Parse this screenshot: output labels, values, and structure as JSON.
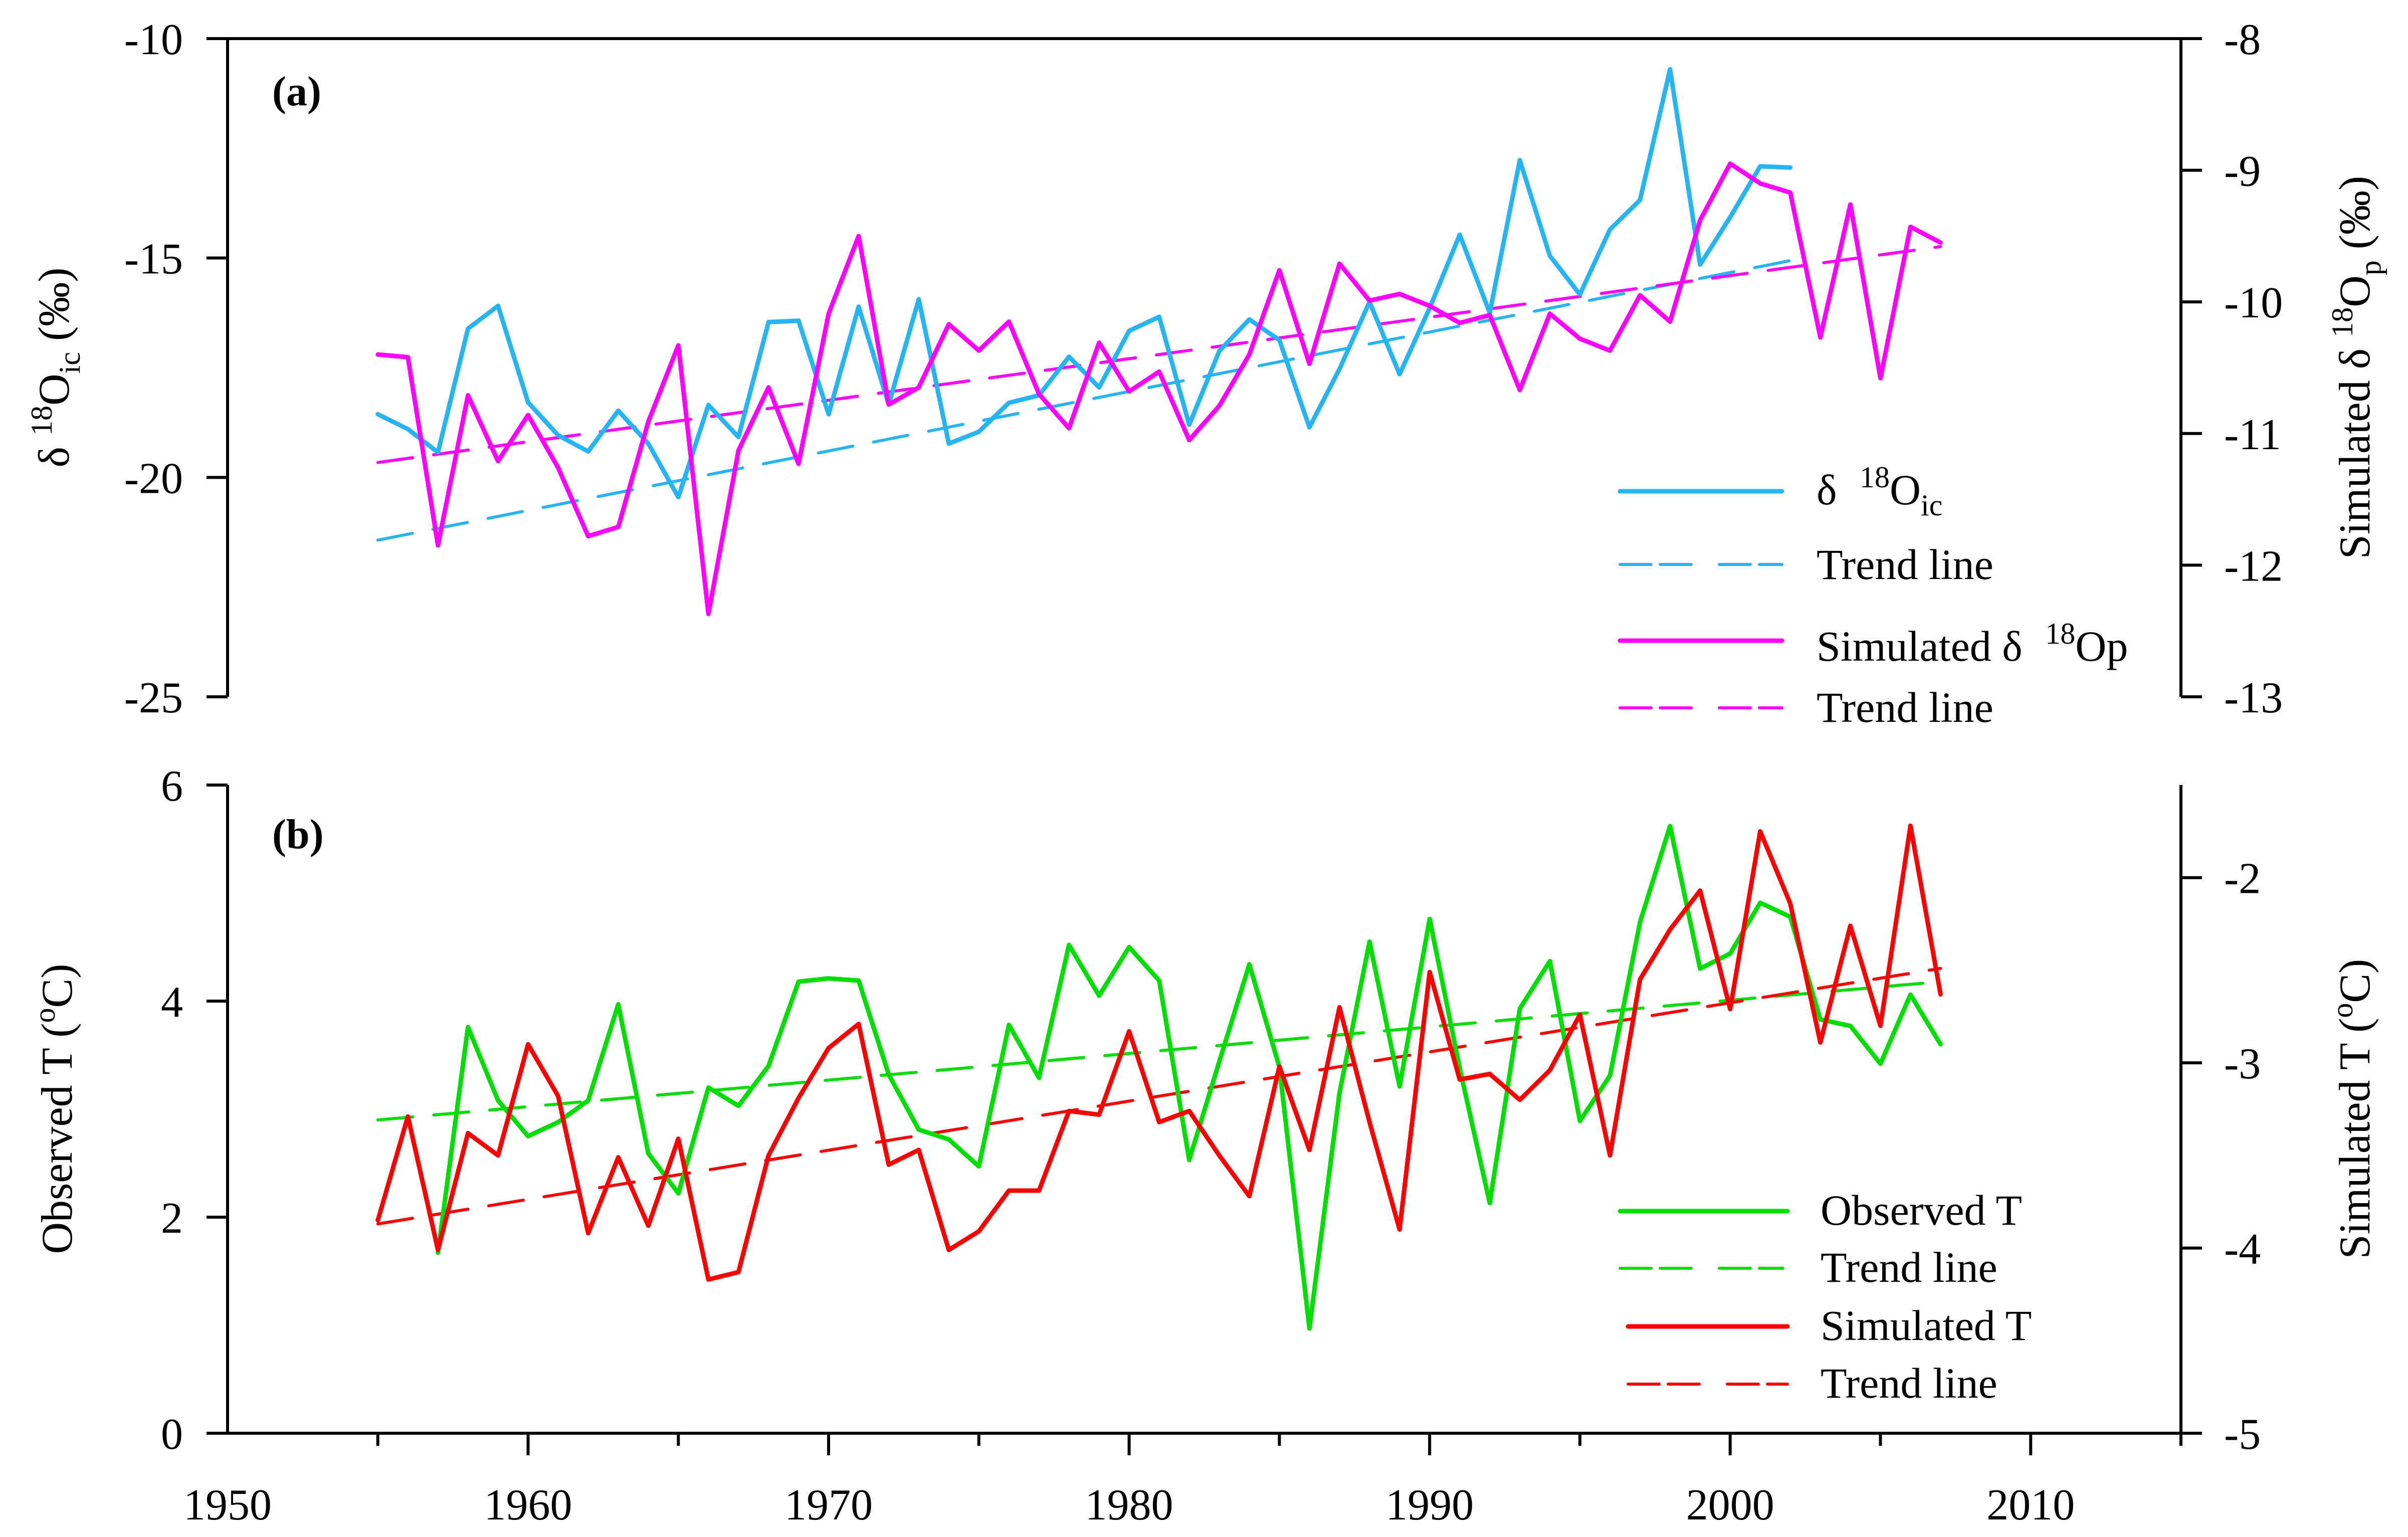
{
  "colors": {
    "delta18O_ic": "#26B4F5",
    "simulated_delta18O_p": "#FF00FF",
    "observed_T": "#00DD00",
    "simulated_T": "#FF0000",
    "axes": "#000000"
  },
  "x_axis": {
    "range": [
      1950,
      2015
    ],
    "ticks": [
      1950,
      1960,
      1970,
      1980,
      1990,
      2000,
      2010
    ],
    "tick_labels": [
      "1950",
      "1960",
      "1970",
      "1980",
      "1990",
      "2000",
      "2010"
    ],
    "minor_step": 5
  },
  "chart_data": [
    {
      "panel": "a",
      "type": "line",
      "label": "(a)",
      "y_left": {
        "title": {
          "prefix": "δ ",
          "sup": "18",
          "main": "O",
          "sub": "ic",
          "suffix": " (‰)"
        },
        "range": [
          -25,
          -10
        ],
        "ticks": [
          -10,
          -15,
          -20,
          -25
        ],
        "tick_labels": [
          "-10",
          "-15",
          "-20",
          "-25"
        ]
      },
      "y_right": {
        "title": {
          "prefix": "Simulated δ ",
          "sup": "18",
          "main": "O",
          "sub": "p",
          "suffix": " (‰)"
        },
        "range": [
          -13,
          -8
        ],
        "ticks": [
          -8,
          -9,
          -10,
          -11,
          -12,
          -13
        ],
        "tick_labels": [
          "-8",
          "-9",
          "-10",
          "-11",
          "-12",
          "-13"
        ]
      },
      "legend": [
        {
          "prefix": "δ ",
          "sup": "18",
          "main": "O",
          "sub": "ic"
        },
        {
          "text": "Trend line"
        },
        {
          "prefix": "Simulated δ ",
          "sup": "18",
          "main": "Op"
        },
        {
          "text": "Trend line"
        }
      ],
      "series": [
        {
          "id": "delta18o-ic-trend",
          "name": "Trend line",
          "axis": "left",
          "style": "dashed",
          "color": "#26B4F5",
          "x": [
            1955,
            2002
          ],
          "values": [
            -21.43,
            -15.06
          ]
        },
        {
          "id": "simulated-delta18o-p-trend",
          "name": "Trend line",
          "axis": "right",
          "style": "dashed",
          "color": "#FF00FF",
          "x": [
            1955,
            2007
          ],
          "values": [
            -11.22,
            -9.58
          ]
        },
        {
          "id": "delta18o-ic",
          "name": "δ18Oic",
          "axis": "left",
          "style": "solid",
          "color": "#26B4F5",
          "x": [
            1955,
            1956,
            1957,
            1958,
            1959,
            1960,
            1961,
            1962,
            1963,
            1964,
            1965,
            1966,
            1967,
            1968,
            1969,
            1970,
            1971,
            1972,
            1973,
            1974,
            1975,
            1976,
            1977,
            1978,
            1979,
            1980,
            1981,
            1982,
            1983,
            1984,
            1985,
            1986,
            1987,
            1988,
            1989,
            1990,
            1991,
            1992,
            1993,
            1994,
            1995,
            1996,
            1997,
            1998,
            1999,
            2000,
            2001,
            2002
          ],
          "values": [
            -18.56,
            -18.9,
            -19.43,
            -16.61,
            -16.09,
            -18.29,
            -19.04,
            -19.41,
            -18.48,
            -19.23,
            -20.45,
            -18.35,
            -19.08,
            -16.46,
            -16.43,
            -18.56,
            -16.11,
            -18.34,
            -15.94,
            -19.23,
            -18.96,
            -18.3,
            -18.13,
            -17.25,
            -17.95,
            -16.66,
            -16.34,
            -18.8,
            -17.12,
            -16.4,
            -16.87,
            -18.86,
            -17.53,
            -16.0,
            -17.65,
            -16.14,
            -14.47,
            -16.25,
            -12.77,
            -14.95,
            -15.83,
            -14.35,
            -13.68,
            -10.7,
            -15.15,
            -14.07,
            -12.91,
            -12.94
          ]
        },
        {
          "id": "simulated-delta18o-p",
          "name": "Simulated δ18Op",
          "axis": "right",
          "style": "solid",
          "color": "#FF00FF",
          "x": [
            1955,
            1956,
            1957,
            1958,
            1959,
            1960,
            1961,
            1962,
            1963,
            1964,
            1965,
            1966,
            1967,
            1968,
            1969,
            1970,
            1971,
            1972,
            1973,
            1974,
            1975,
            1976,
            1977,
            1978,
            1979,
            1980,
            1981,
            1982,
            1983,
            1984,
            1985,
            1986,
            1987,
            1988,
            1989,
            1990,
            1991,
            1992,
            1993,
            1994,
            1995,
            1996,
            1997,
            1998,
            1999,
            2000,
            2001,
            2002,
            2003,
            2004,
            2005,
            2006,
            2007
          ],
          "values": [
            -10.4,
            -10.42,
            -11.85,
            -10.71,
            -11.21,
            -10.86,
            -11.26,
            -11.78,
            -11.71,
            -10.91,
            -10.33,
            -12.37,
            -11.13,
            -10.65,
            -11.23,
            -10.09,
            -9.5,
            -10.78,
            -10.65,
            -10.17,
            -10.37,
            -10.15,
            -10.7,
            -10.96,
            -10.31,
            -10.68,
            -10.53,
            -11.05,
            -10.79,
            -10.4,
            -9.76,
            -10.47,
            -9.71,
            -9.99,
            -9.94,
            -10.03,
            -10.16,
            -10.1,
            -10.67,
            -10.09,
            -10.28,
            -10.37,
            -9.95,
            -10.15,
            -9.38,
            -8.95,
            -9.1,
            -9.17,
            -10.27,
            -9.26,
            -10.58,
            -9.43,
            -9.55
          ]
        }
      ],
      "legend_position": "bottom-right"
    },
    {
      "panel": "b",
      "type": "line",
      "label": "(b)",
      "y_left": {
        "title": {
          "prefix": "Observed T (",
          "sup": "o",
          "main": "C)"
        },
        "range": [
          0,
          6
        ],
        "ticks": [
          0,
          2,
          4,
          6
        ],
        "tick_labels": [
          "0",
          "2",
          "4",
          "6"
        ]
      },
      "y_right": {
        "title": {
          "prefix": "Simulated T (",
          "sup": "o",
          "main": "C)"
        },
        "range": [
          -5,
          -1.5
        ],
        "ticks": [
          -2,
          -3,
          -4,
          -5
        ],
        "tick_labels": [
          "-2",
          "-3",
          "-4",
          "-5"
        ]
      },
      "legend": [
        {
          "text": "Observed T"
        },
        {
          "text": "Trend line"
        },
        {
          "text": "Simulated T"
        },
        {
          "text": "Trend line"
        }
      ],
      "series": [
        {
          "id": "observed-t-trend",
          "name": "Trend line",
          "axis": "left",
          "style": "dashed",
          "color": "#00DD00",
          "x": [
            1955,
            2007
          ],
          "values": [
            2.9,
            4.18
          ]
        },
        {
          "id": "simulated-t-trend",
          "name": "Trend line",
          "axis": "right",
          "style": "dashed",
          "color": "#FF0000",
          "x": [
            1955,
            2007
          ],
          "values": [
            -3.87,
            -2.49
          ]
        },
        {
          "id": "observed-t",
          "name": "Observed T",
          "axis": "left",
          "style": "solid",
          "color": "#00DD00",
          "x": [
            1957,
            1958,
            1959,
            1960,
            1961,
            1962,
            1963,
            1964,
            1965,
            1966,
            1967,
            1968,
            1969,
            1970,
            1971,
            1972,
            1973,
            1974,
            1975,
            1976,
            1977,
            1978,
            1979,
            1980,
            1981,
            1982,
            1983,
            1984,
            1985,
            1986,
            1987,
            1988,
            1989,
            1990,
            1991,
            1992,
            1993,
            1994,
            1995,
            1996,
            1997,
            1998,
            1999,
            2000,
            2001,
            2002,
            2003,
            2004,
            2005,
            2006,
            2007
          ],
          "values": [
            1.67,
            3.76,
            3.08,
            2.75,
            2.88,
            3.08,
            3.97,
            2.59,
            2.22,
            3.2,
            3.03,
            3.4,
            4.18,
            4.21,
            4.19,
            3.32,
            2.81,
            2.72,
            2.47,
            3.78,
            3.29,
            4.52,
            4.05,
            4.5,
            4.19,
            2.53,
            3.44,
            4.34,
            3.39,
            0.97,
            3.15,
            4.55,
            3.21,
            4.76,
            3.38,
            2.13,
            3.93,
            4.37,
            2.89,
            3.31,
            4.73,
            5.62,
            4.3,
            4.44,
            4.91,
            4.78,
            3.83,
            3.77,
            3.42,
            4.06,
            3.6
          ]
        },
        {
          "id": "simulated-t",
          "name": "Simulated T",
          "axis": "right",
          "style": "solid",
          "color": "#FF0000",
          "x": [
            1955,
            1956,
            1957,
            1958,
            1959,
            1960,
            1961,
            1962,
            1963,
            1964,
            1965,
            1966,
            1967,
            1968,
            1969,
            1970,
            1971,
            1972,
            1973,
            1974,
            1975,
            1976,
            1977,
            1978,
            1979,
            1980,
            1981,
            1982,
            1983,
            1984,
            1985,
            1986,
            1987,
            1988,
            1989,
            1990,
            1991,
            1992,
            1993,
            1994,
            1995,
            1996,
            1997,
            1998,
            1999,
            2000,
            2001,
            2002,
            2003,
            2004,
            2005,
            2006,
            2007
          ],
          "values": [
            -3.85,
            -3.29,
            -4.01,
            -3.38,
            -3.5,
            -2.9,
            -3.18,
            -3.92,
            -3.51,
            -3.88,
            -3.41,
            -4.17,
            -4.13,
            -3.5,
            -3.19,
            -2.92,
            -2.79,
            -3.55,
            -3.47,
            -4.01,
            -3.91,
            -3.69,
            -3.69,
            -3.26,
            -3.28,
            -2.83,
            -3.32,
            -3.26,
            -3.5,
            -3.72,
            -3.02,
            -3.47,
            -2.7,
            -3.32,
            -3.9,
            -2.51,
            -3.09,
            -3.06,
            -3.2,
            -3.04,
            -2.74,
            -3.5,
            -2.55,
            -2.28,
            -2.07,
            -2.71,
            -1.75,
            -2.14,
            -2.89,
            -2.26,
            -2.8,
            -1.72,
            -2.63
          ]
        }
      ],
      "legend_position": "bottom-right"
    }
  ]
}
